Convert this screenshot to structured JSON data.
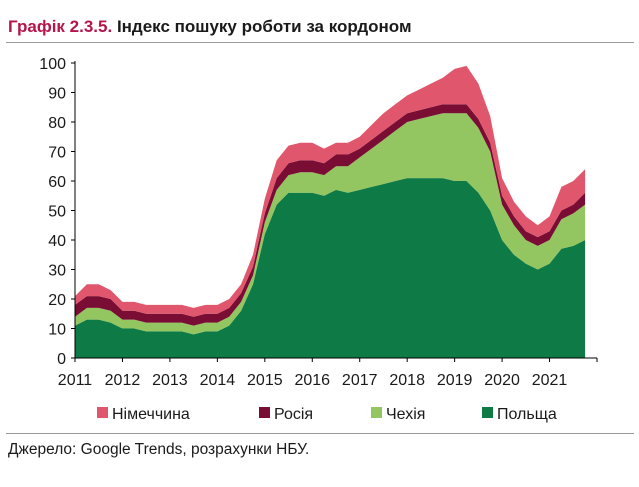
{
  "header": {
    "number": "Графік 2.3.5.",
    "title": "Індекс пошуку роботи за кордоном"
  },
  "source": "Джерело: Google Trends, розрахунки НБУ.",
  "chart_data": {
    "type": "area",
    "stacked": true,
    "title": "Індекс пошуку роботи за кордоном",
    "xlabel": "",
    "ylabel": "",
    "ylim": [
      0,
      100
    ],
    "yticks": [
      0,
      10,
      20,
      30,
      40,
      50,
      60,
      70,
      80,
      90,
      100
    ],
    "xlim": [
      2011,
      2022
    ],
    "xticks": [
      "2011",
      "2012",
      "2013",
      "2014",
      "2015",
      "2016",
      "2017",
      "2018",
      "2019",
      "2020",
      "2021"
    ],
    "grid": false,
    "legend": "bottom",
    "x": [
      2011.0,
      2011.25,
      2011.5,
      2011.75,
      2012.0,
      2012.25,
      2012.5,
      2012.75,
      2013.0,
      2013.25,
      2013.5,
      2013.75,
      2014.0,
      2014.25,
      2014.5,
      2014.75,
      2015.0,
      2015.25,
      2015.5,
      2015.75,
      2016.0,
      2016.25,
      2016.5,
      2016.75,
      2017.0,
      2017.25,
      2017.5,
      2017.75,
      2018.0,
      2018.25,
      2018.5,
      2018.75,
      2019.0,
      2019.25,
      2019.5,
      2019.75,
      2020.0,
      2020.25,
      2020.5,
      2020.75,
      2021.0,
      2021.25,
      2021.5,
      2021.75
    ],
    "series": [
      {
        "name": "Польща",
        "color": "#0e7a45",
        "values": [
          11,
          13,
          13,
          12,
          10,
          10,
          9,
          9,
          9,
          9,
          8,
          9,
          9,
          11,
          16,
          25,
          42,
          52,
          56,
          56,
          56,
          55,
          57,
          56,
          57,
          58,
          59,
          60,
          61,
          61,
          61,
          61,
          60,
          60,
          56,
          50,
          40,
          35,
          32,
          30,
          32,
          37,
          38,
          40
        ]
      },
      {
        "name": "Чехія",
        "color": "#93c560",
        "values": [
          3,
          4,
          4,
          4,
          3,
          3,
          3,
          3,
          3,
          3,
          3,
          3,
          3,
          3,
          3,
          3,
          4,
          5,
          6,
          7,
          7,
          7,
          8,
          9,
          11,
          13,
          15,
          17,
          19,
          20,
          21,
          22,
          23,
          23,
          22,
          20,
          12,
          10,
          8,
          8,
          8,
          10,
          11,
          12
        ]
      },
      {
        "name": "Росія",
        "color": "#7a0d33",
        "values": [
          4,
          4,
          4,
          4,
          3,
          3,
          3,
          3,
          3,
          3,
          3,
          3,
          3,
          3,
          3,
          3,
          3,
          4,
          4,
          4,
          4,
          4,
          4,
          4,
          3,
          3,
          3,
          3,
          3,
          3,
          3,
          3,
          3,
          3,
          3,
          3,
          3,
          3,
          3,
          3,
          3,
          3,
          3,
          4
        ]
      },
      {
        "name": "Німеччина",
        "color": "#e0576d",
        "values": [
          3,
          4,
          4,
          3,
          3,
          3,
          3,
          3,
          3,
          3,
          3,
          3,
          3,
          3,
          3,
          4,
          5,
          6,
          6,
          6,
          6,
          5,
          4,
          4,
          4,
          5,
          6,
          6,
          6,
          7,
          8,
          9,
          12,
          13,
          12,
          9,
          6,
          5,
          5,
          4,
          5,
          8,
          8,
          8
        ]
      }
    ],
    "legend_order": [
      "Німеччина",
      "Росія",
      "Чехія",
      "Польща"
    ]
  }
}
